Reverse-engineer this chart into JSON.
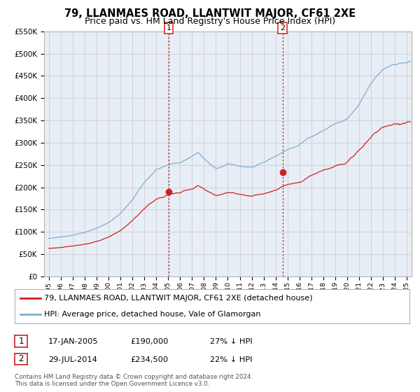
{
  "title": "79, LLANMAES ROAD, LLANTWIT MAJOR, CF61 2XE",
  "subtitle": "Price paid vs. HM Land Registry's House Price Index (HPI)",
  "ylim": [
    0,
    550000
  ],
  "yticks": [
    0,
    50000,
    100000,
    150000,
    200000,
    250000,
    300000,
    350000,
    400000,
    450000,
    500000,
    550000
  ],
  "ytick_labels": [
    "£0",
    "£50K",
    "£100K",
    "£150K",
    "£200K",
    "£250K",
    "£300K",
    "£350K",
    "£400K",
    "£450K",
    "£500K",
    "£550K"
  ],
  "hpi_color": "#7ab0d4",
  "sale_color": "#cc2222",
  "sale1_date_num": 2005.04,
  "sale1_price": 190000,
  "sale2_date_num": 2014.58,
  "sale2_price": 234500,
  "vline_color": "#cc2222",
  "background_color": "#ffffff",
  "chart_bg": "#e8eef5",
  "grid_color": "#c8c8c8",
  "legend_label_sale": "79, LLANMAES ROAD, LLANTWIT MAJOR, CF61 2XE (detached house)",
  "legend_label_hpi": "HPI: Average price, detached house, Vale of Glamorgan",
  "table_row1": [
    "1",
    "17-JAN-2005",
    "£190,000",
    "27% ↓ HPI"
  ],
  "table_row2": [
    "2",
    "29-JUL-2014",
    "£234,500",
    "22% ↓ HPI"
  ],
  "footnote1": "Contains HM Land Registry data © Crown copyright and database right 2024.",
  "footnote2": "This data is licensed under the Open Government Licence v3.0.",
  "title_fontsize": 10.5,
  "subtitle_fontsize": 9,
  "xlim_left": 1994.6,
  "xlim_right": 2025.4
}
